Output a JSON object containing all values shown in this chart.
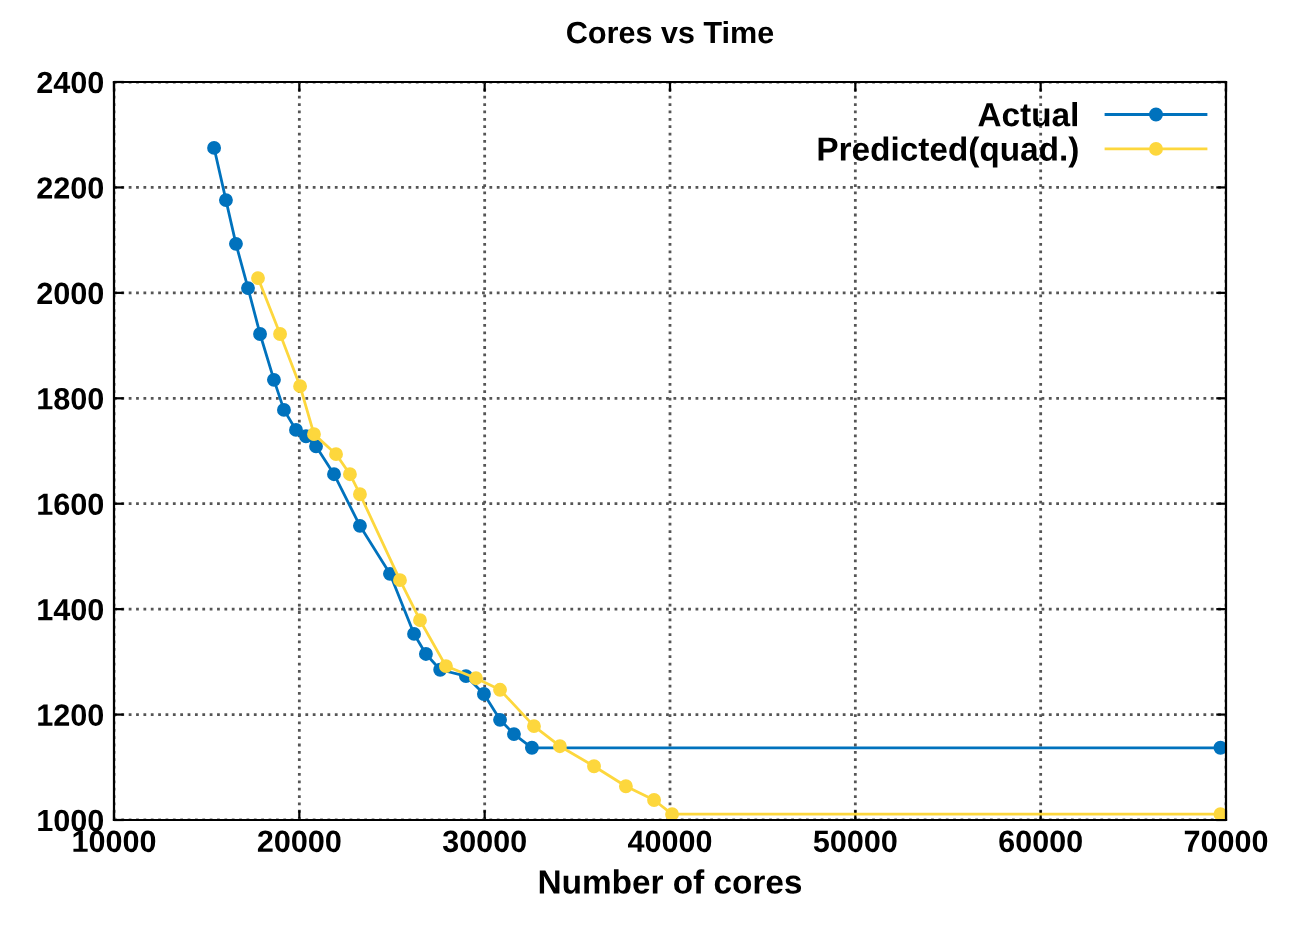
{
  "chart_data": {
    "type": "line",
    "title": "Cores vs Time",
    "xlabel": "Number of cores",
    "xlim": [
      10000,
      70000
    ],
    "xticks": [
      10000,
      20000,
      30000,
      40000,
      50000,
      60000,
      70000
    ],
    "ylim": [
      1000,
      2400
    ],
    "yticks": [
      1000,
      1200,
      1400,
      1600,
      1800,
      2000,
      2200,
      2400
    ],
    "grid": true,
    "legend": "top right",
    "marker": "circle",
    "line_style": "solid",
    "series": [
      {
        "name": "Actual",
        "color": "#0072bd",
        "x": [
          15400,
          16040,
          16580,
          17230,
          17880,
          18630,
          19170,
          19820,
          20360,
          20900,
          21870,
          23270,
          24890,
          26190,
          26830,
          27600,
          28990,
          29960,
          30830,
          31580,
          32550,
          69700
        ],
        "values": [
          2275,
          2176,
          2093,
          2009,
          1922,
          1835,
          1778,
          1740,
          1728,
          1709,
          1656,
          1558,
          1467,
          1353,
          1315,
          1285,
          1273,
          1239,
          1190,
          1163,
          1137,
          1137
        ]
      },
      {
        "name": "Predicted(quad.)",
        "color": "#fdd73d",
        "x": [
          17770,
          18960,
          20040,
          20790,
          21980,
          22730,
          23270,
          25430,
          26510,
          27910,
          29530,
          30830,
          32660,
          34060,
          35900,
          37620,
          39140,
          40110,
          69700
        ],
        "values": [
          2028,
          1922,
          1823,
          1732,
          1694,
          1656,
          1618,
          1455,
          1379,
          1292,
          1269,
          1247,
          1178,
          1140,
          1102,
          1064,
          1038,
          1011,
          1011
        ]
      }
    ]
  }
}
